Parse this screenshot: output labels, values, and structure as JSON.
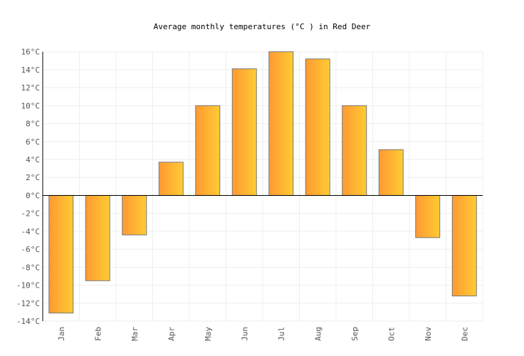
{
  "chart_data": {
    "type": "bar",
    "title": "Average monthly temperatures (°C ) in Red Deer",
    "categories": [
      "Jan",
      "Feb",
      "Mar",
      "Apr",
      "May",
      "Jun",
      "Jul",
      "Aug",
      "Sep",
      "Oct",
      "Nov",
      "Dec"
    ],
    "values": [
      -13.1,
      -9.5,
      -4.4,
      3.7,
      10.0,
      14.1,
      16.0,
      15.2,
      10.0,
      5.1,
      -4.7,
      -11.2
    ],
    "ylim": [
      -14,
      16
    ],
    "yticks": [
      -14,
      -12,
      -10,
      -8,
      -6,
      -4,
      -2,
      0,
      2,
      4,
      6,
      8,
      10,
      12,
      14,
      16
    ],
    "ytick_unit": "°C",
    "grid": true,
    "bar_gradient": [
      "#ff9933",
      "#ffcc33"
    ],
    "bar_stroke": "#777777"
  }
}
